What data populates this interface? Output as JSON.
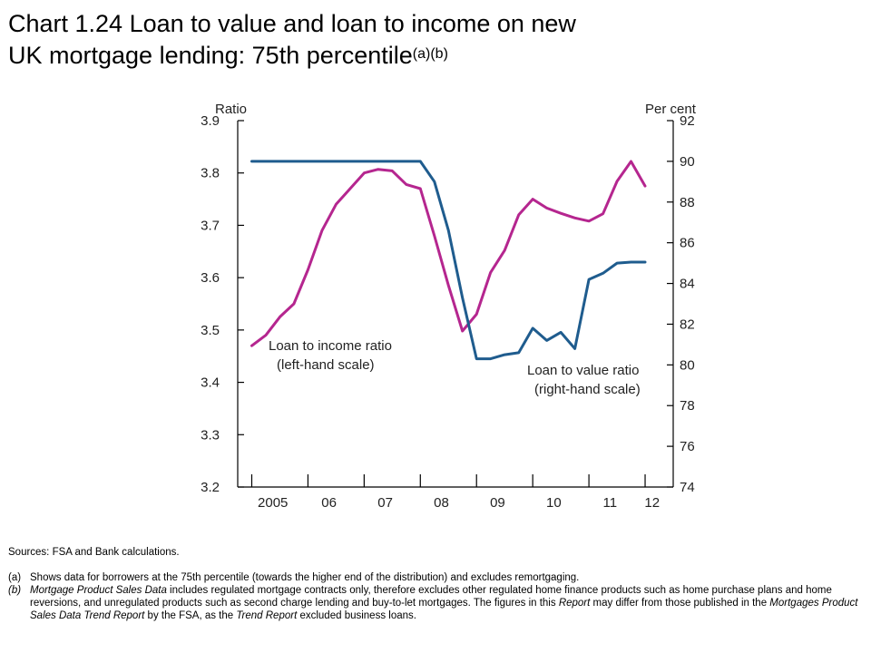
{
  "header": {
    "title_line1": "Chart 1.24  Loan to value and loan to income on new",
    "title_line2": "UK mortgage lending:  75th percentile",
    "title_sup": "(a)(b)"
  },
  "chart_data": {
    "type": "line",
    "left_axis": {
      "label": "Ratio",
      "range": [
        3.2,
        3.9
      ],
      "ticks": [
        "3.2",
        "3.3",
        "3.4",
        "3.5",
        "3.6",
        "3.7",
        "3.8",
        "3.9"
      ]
    },
    "right_axis": {
      "label": "Per cent",
      "range": [
        74,
        92
      ],
      "ticks": [
        "74",
        "76",
        "78",
        "80",
        "82",
        "84",
        "86",
        "88",
        "90",
        "92"
      ]
    },
    "x_tick_labels": [
      {
        "label": "2005",
        "t": 2005.375
      },
      {
        "label": "06",
        "t": 2006.375
      },
      {
        "label": "07",
        "t": 2007.375
      },
      {
        "label": "08",
        "t": 2008.375
      },
      {
        "label": "09",
        "t": 2009.375
      },
      {
        "label": "10",
        "t": 2010.375
      },
      {
        "label": "11",
        "t": 2011.375
      },
      {
        "label": "12",
        "t": 2012.125
      }
    ],
    "x_range": [
      2004.75,
      2012.5
    ],
    "grid": false,
    "series": [
      {
        "name": "Loan to income ratio",
        "annotation_line1": "Loan to income ratio",
        "annotation_line2": "(left-hand scale)",
        "axis": "left",
        "color": "#b5268f",
        "points": [
          [
            2005.0,
            3.47
          ],
          [
            2005.25,
            3.49
          ],
          [
            2005.5,
            3.525
          ],
          [
            2005.75,
            3.55
          ],
          [
            2006.0,
            3.615
          ],
          [
            2006.25,
            3.69
          ],
          [
            2006.5,
            3.74
          ],
          [
            2006.75,
            3.77
          ],
          [
            2007.0,
            3.8
          ],
          [
            2007.25,
            3.807
          ],
          [
            2007.5,
            3.804
          ],
          [
            2007.75,
            3.778
          ],
          [
            2008.0,
            3.77
          ],
          [
            2008.25,
            3.68
          ],
          [
            2008.5,
            3.585
          ],
          [
            2008.75,
            3.498
          ],
          [
            2009.0,
            3.53
          ],
          [
            2009.25,
            3.61
          ],
          [
            2009.5,
            3.652
          ],
          [
            2009.75,
            3.72
          ],
          [
            2010.0,
            3.75
          ],
          [
            2010.25,
            3.733
          ],
          [
            2010.5,
            3.723
          ],
          [
            2010.75,
            3.714
          ],
          [
            2011.0,
            3.708
          ],
          [
            2011.25,
            3.722
          ],
          [
            2011.5,
            3.784
          ],
          [
            2011.75,
            3.822
          ],
          [
            2012.0,
            3.775
          ]
        ]
      },
      {
        "name": "Loan to value ratio",
        "annotation_line1": "Loan to value ratio",
        "annotation_line2": "(right-hand scale)",
        "axis": "right",
        "color": "#1f5c8e",
        "points": [
          [
            2005.0,
            90
          ],
          [
            2005.25,
            90
          ],
          [
            2005.5,
            90
          ],
          [
            2005.75,
            90
          ],
          [
            2006.0,
            90
          ],
          [
            2006.25,
            90
          ],
          [
            2006.5,
            90
          ],
          [
            2006.75,
            90
          ],
          [
            2007.0,
            90
          ],
          [
            2007.25,
            90
          ],
          [
            2007.5,
            90
          ],
          [
            2007.75,
            90
          ],
          [
            2008.0,
            90
          ],
          [
            2008.25,
            89
          ],
          [
            2008.5,
            86.6
          ],
          [
            2008.75,
            83.3
          ],
          [
            2009.0,
            80.3
          ],
          [
            2009.25,
            80.3
          ],
          [
            2009.5,
            80.5
          ],
          [
            2009.75,
            80.6
          ],
          [
            2010.0,
            81.8
          ],
          [
            2010.25,
            81.2
          ],
          [
            2010.5,
            81.6
          ],
          [
            2010.75,
            80.8
          ],
          [
            2011.0,
            84.2
          ],
          [
            2011.25,
            84.5
          ],
          [
            2011.5,
            85
          ],
          [
            2011.75,
            85.05
          ],
          [
            2012.0,
            85.05
          ]
        ]
      }
    ]
  },
  "footer": {
    "sources": "Sources:  FSA and Bank calculations.",
    "note_a_tag": "(a)",
    "note_a": "Shows data for borrowers at the 75th percentile (towards the higher end of the distribution) and excludes remortgaging.",
    "note_b_tag": "(b)",
    "note_b_1_italic": "Mortgage Product Sales Data",
    "note_b_2": " includes regulated mortgage contracts only, therefore excludes other regulated home finance products such as home purchase plans and home reversions, and unregulated products such as second charge lending and buy-to-let mortgages.  The figures in this ",
    "note_b_3_italic": "Report",
    "note_b_4": " may differ from those published in the ",
    "note_b_5_italic": "Mortgages Product Sales Data Trend Report",
    "note_b_6": " by the FSA, as the ",
    "note_b_7_italic": "Trend Report",
    "note_b_8": " excluded business loans."
  }
}
